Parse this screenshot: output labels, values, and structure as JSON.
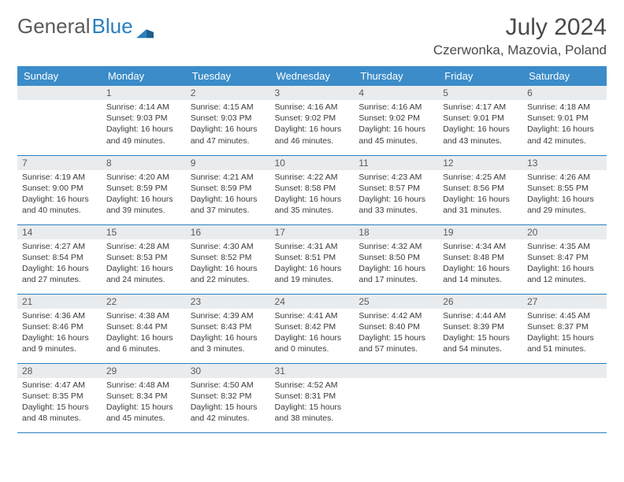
{
  "logo": {
    "word1": "General",
    "word2": "Blue"
  },
  "title": {
    "month_year": "July 2024",
    "location": "Czerwonka, Mazovia, Poland"
  },
  "colors": {
    "header_bg": "#3b8cc9",
    "header_fg": "#ffffff",
    "daynum_bg": "#e9ecef",
    "daynum_fg": "#5a5a5a",
    "border": "#2a7fbf",
    "text": "#3a3a3a",
    "logo_blue": "#2a7fbf",
    "logo_gray": "#5a5a5a"
  },
  "weekdays": [
    "Sunday",
    "Monday",
    "Tuesday",
    "Wednesday",
    "Thursday",
    "Friday",
    "Saturday"
  ],
  "label_sunrise": "Sunrise: ",
  "label_sunset": "Sunset: ",
  "label_daylight_prefix": "Daylight: ",
  "grid": [
    [
      null,
      {
        "n": "1",
        "sr": "4:14 AM",
        "ss": "9:03 PM",
        "dl": "16 hours and 49 minutes."
      },
      {
        "n": "2",
        "sr": "4:15 AM",
        "ss": "9:03 PM",
        "dl": "16 hours and 47 minutes."
      },
      {
        "n": "3",
        "sr": "4:16 AM",
        "ss": "9:02 PM",
        "dl": "16 hours and 46 minutes."
      },
      {
        "n": "4",
        "sr": "4:16 AM",
        "ss": "9:02 PM",
        "dl": "16 hours and 45 minutes."
      },
      {
        "n": "5",
        "sr": "4:17 AM",
        "ss": "9:01 PM",
        "dl": "16 hours and 43 minutes."
      },
      {
        "n": "6",
        "sr": "4:18 AM",
        "ss": "9:01 PM",
        "dl": "16 hours and 42 minutes."
      }
    ],
    [
      {
        "n": "7",
        "sr": "4:19 AM",
        "ss": "9:00 PM",
        "dl": "16 hours and 40 minutes."
      },
      {
        "n": "8",
        "sr": "4:20 AM",
        "ss": "8:59 PM",
        "dl": "16 hours and 39 minutes."
      },
      {
        "n": "9",
        "sr": "4:21 AM",
        "ss": "8:59 PM",
        "dl": "16 hours and 37 minutes."
      },
      {
        "n": "10",
        "sr": "4:22 AM",
        "ss": "8:58 PM",
        "dl": "16 hours and 35 minutes."
      },
      {
        "n": "11",
        "sr": "4:23 AM",
        "ss": "8:57 PM",
        "dl": "16 hours and 33 minutes."
      },
      {
        "n": "12",
        "sr": "4:25 AM",
        "ss": "8:56 PM",
        "dl": "16 hours and 31 minutes."
      },
      {
        "n": "13",
        "sr": "4:26 AM",
        "ss": "8:55 PM",
        "dl": "16 hours and 29 minutes."
      }
    ],
    [
      {
        "n": "14",
        "sr": "4:27 AM",
        "ss": "8:54 PM",
        "dl": "16 hours and 27 minutes."
      },
      {
        "n": "15",
        "sr": "4:28 AM",
        "ss": "8:53 PM",
        "dl": "16 hours and 24 minutes."
      },
      {
        "n": "16",
        "sr": "4:30 AM",
        "ss": "8:52 PM",
        "dl": "16 hours and 22 minutes."
      },
      {
        "n": "17",
        "sr": "4:31 AM",
        "ss": "8:51 PM",
        "dl": "16 hours and 19 minutes."
      },
      {
        "n": "18",
        "sr": "4:32 AM",
        "ss": "8:50 PM",
        "dl": "16 hours and 17 minutes."
      },
      {
        "n": "19",
        "sr": "4:34 AM",
        "ss": "8:48 PM",
        "dl": "16 hours and 14 minutes."
      },
      {
        "n": "20",
        "sr": "4:35 AM",
        "ss": "8:47 PM",
        "dl": "16 hours and 12 minutes."
      }
    ],
    [
      {
        "n": "21",
        "sr": "4:36 AM",
        "ss": "8:46 PM",
        "dl": "16 hours and 9 minutes."
      },
      {
        "n": "22",
        "sr": "4:38 AM",
        "ss": "8:44 PM",
        "dl": "16 hours and 6 minutes."
      },
      {
        "n": "23",
        "sr": "4:39 AM",
        "ss": "8:43 PM",
        "dl": "16 hours and 3 minutes."
      },
      {
        "n": "24",
        "sr": "4:41 AM",
        "ss": "8:42 PM",
        "dl": "16 hours and 0 minutes."
      },
      {
        "n": "25",
        "sr": "4:42 AM",
        "ss": "8:40 PM",
        "dl": "15 hours and 57 minutes."
      },
      {
        "n": "26",
        "sr": "4:44 AM",
        "ss": "8:39 PM",
        "dl": "15 hours and 54 minutes."
      },
      {
        "n": "27",
        "sr": "4:45 AM",
        "ss": "8:37 PM",
        "dl": "15 hours and 51 minutes."
      }
    ],
    [
      {
        "n": "28",
        "sr": "4:47 AM",
        "ss": "8:35 PM",
        "dl": "15 hours and 48 minutes."
      },
      {
        "n": "29",
        "sr": "4:48 AM",
        "ss": "8:34 PM",
        "dl": "15 hours and 45 minutes."
      },
      {
        "n": "30",
        "sr": "4:50 AM",
        "ss": "8:32 PM",
        "dl": "15 hours and 42 minutes."
      },
      {
        "n": "31",
        "sr": "4:52 AM",
        "ss": "8:31 PM",
        "dl": "15 hours and 38 minutes."
      },
      null,
      null,
      null
    ]
  ]
}
